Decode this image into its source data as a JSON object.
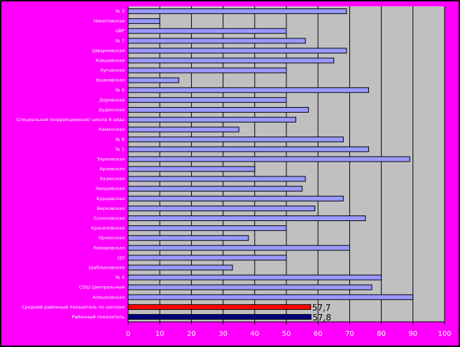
{
  "chart_data": {
    "type": "bar",
    "orientation": "horizontal",
    "title": "",
    "xlabel": "",
    "ylabel": "",
    "xlim": [
      0,
      100
    ],
    "x_ticks": [
      0,
      10,
      20,
      30,
      40,
      50,
      60,
      70,
      80,
      90,
      100
    ],
    "grid": true,
    "legend": "none",
    "colors": {
      "outer_background": "#FF00FF",
      "plot_background": "#C0C0C0",
      "bar_default": "#9999FF",
      "bar_highlight_1": "#FF0000",
      "bar_highlight_2": "#000080",
      "text": "#FFFFFF",
      "value_label": "#000000"
    },
    "categories": [
      "№ 3",
      "Никитовская",
      "ЦВР",
      "№ 7",
      "Шварневская",
      "Ковшевская",
      "Луговская",
      "Ушаковская",
      "№ 9",
      "Доровская",
      "Дудинская",
      "Специальная (коррекционная) школа 8 вида",
      "Каменская",
      "№ 8",
      "№ 1",
      "Терновская",
      "Арловская",
      "Лазинская",
      "Хвощевская",
      "Бурцевская",
      "Верховская",
      "Солоновская",
      "Красиловская",
      "Орлинская",
      "Комаровская",
      "ЦО",
      "Шаблыковская",
      "№ 4",
      "СОШ Центральный",
      "Алешковская",
      "Средний районный показатель по школам",
      "Районный показатель"
    ],
    "values": [
      69,
      10,
      50,
      56,
      69,
      65,
      50,
      16,
      76,
      50,
      57,
      53,
      35,
      68,
      76,
      89,
      40,
      56,
      55,
      68,
      59,
      75,
      50,
      38,
      70,
      50,
      33,
      80,
      77,
      90,
      57.7,
      57.8
    ],
    "data_labels": [
      "",
      "",
      "",
      "",
      "",
      "",
      "",
      "",
      "",
      "",
      "",
      "",
      "",
      "",
      "",
      "",
      "",
      "",
      "",
      "",
      "",
      "",
      "",
      "",
      "",
      "",
      "",
      "",
      "",
      "",
      "57,7",
      "57,8"
    ],
    "bar_colors": [
      "#9999FF",
      "#9999FF",
      "#9999FF",
      "#9999FF",
      "#9999FF",
      "#9999FF",
      "#9999FF",
      "#9999FF",
      "#9999FF",
      "#9999FF",
      "#9999FF",
      "#9999FF",
      "#9999FF",
      "#9999FF",
      "#9999FF",
      "#9999FF",
      "#9999FF",
      "#9999FF",
      "#9999FF",
      "#9999FF",
      "#9999FF",
      "#9999FF",
      "#9999FF",
      "#9999FF",
      "#9999FF",
      "#9999FF",
      "#9999FF",
      "#9999FF",
      "#9999FF",
      "#9999FF",
      "#FF0000",
      "#000080"
    ]
  }
}
